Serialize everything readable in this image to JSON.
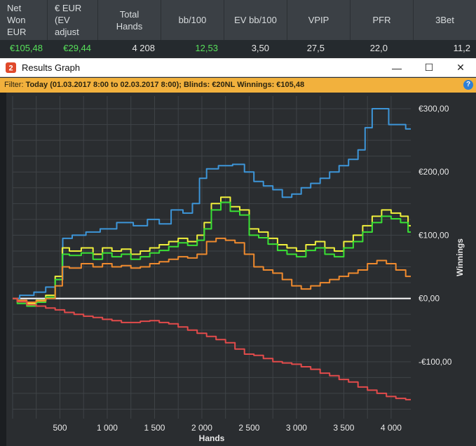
{
  "stats_table": {
    "headers": [
      "Net Won EUR",
      "€ EUR (EV adjust",
      "Total Hands",
      "bb/100",
      "EV bb/100",
      "VPIP",
      "PFR",
      "3Bet"
    ],
    "values": [
      "€105,48",
      "€29,44",
      "4 208",
      "12,53",
      "3,50",
      "27,5",
      "22,0",
      "11,2"
    ]
  },
  "window": {
    "title": "Results Graph",
    "minimize_label": "—",
    "maximize_label": "☐",
    "close_label": "✕",
    "filter": {
      "prefix": "Filter:",
      "text": "Today (01.03.2017 8:00 to 02.03.2017 8:00); Blinds: €20NL Winnings: €105,48"
    },
    "help_label": "?"
  },
  "colors": {
    "header_bg": "#3b4045",
    "green_value": "#57e05a",
    "filter_bg": "#f2b13d",
    "series_blue": "#3d95d8",
    "series_yellow": "#f0f03c",
    "series_green": "#39e035",
    "series_orange": "#ef8a2e",
    "series_red": "#e24b4b",
    "zero_line": "#ffffff"
  },
  "chart_data": {
    "type": "line",
    "xlabel": "Hands",
    "ylabel": "Winnings",
    "xlim": [
      0,
      4208
    ],
    "ylim": [
      -190,
      320
    ],
    "x_ticks": [
      500,
      1000,
      1500,
      2000,
      2500,
      3000,
      3500,
      4000
    ],
    "x_tick_labels": [
      "500",
      "1 000",
      "1 500",
      "2 000",
      "2 500",
      "3 000",
      "3 500",
      "4 000"
    ],
    "y_ticks": [
      300,
      200,
      100,
      0,
      -100
    ],
    "y_tick_labels": [
      "€300,00",
      "€200,00",
      "€100,00",
      "€0,00",
      "-€100,00"
    ],
    "grid": true,
    "series": [
      {
        "color": "#3d95d8",
        "x": [
          0,
          150,
          300,
          400,
          500,
          560,
          700,
          850,
          1000,
          1200,
          1350,
          1500,
          1600,
          1750,
          1850,
          1950,
          2000,
          2100,
          2250,
          2400,
          2500,
          2600,
          2700,
          2800,
          2900,
          3000,
          3100,
          3200,
          3300,
          3400,
          3500,
          3600,
          3700,
          3750,
          3850,
          3950,
          4000,
          4100,
          4208
        ],
        "values": [
          0,
          5,
          10,
          18,
          30,
          95,
          100,
          105,
          110,
          120,
          115,
          125,
          118,
          140,
          135,
          150,
          190,
          205,
          210,
          212,
          200,
          185,
          178,
          172,
          160,
          165,
          175,
          182,
          190,
          200,
          210,
          220,
          235,
          270,
          300,
          300,
          275,
          275,
          268
        ]
      },
      {
        "color": "#f0f03c",
        "x": [
          0,
          100,
          200,
          300,
          400,
          500,
          550,
          650,
          800,
          900,
          1000,
          1100,
          1200,
          1300,
          1400,
          1500,
          1600,
          1700,
          1800,
          1900,
          2000,
          2050,
          2150,
          2250,
          2350,
          2450,
          2550,
          2650,
          2750,
          2850,
          2950,
          3050,
          3150,
          3250,
          3350,
          3450,
          3550,
          3650,
          3750,
          3850,
          3950,
          4050,
          4150,
          4208
        ],
        "values": [
          0,
          -5,
          -8,
          -3,
          5,
          35,
          80,
          75,
          80,
          70,
          80,
          75,
          78,
          70,
          75,
          80,
          85,
          90,
          95,
          90,
          100,
          120,
          150,
          160,
          145,
          140,
          110,
          105,
          95,
          85,
          80,
          75,
          85,
          90,
          80,
          75,
          90,
          100,
          115,
          130,
          140,
          135,
          130,
          115
        ]
      },
      {
        "color": "#39e035",
        "x": [
          0,
          100,
          200,
          300,
          400,
          500,
          550,
          650,
          800,
          900,
          1000,
          1100,
          1200,
          1300,
          1400,
          1500,
          1600,
          1700,
          1800,
          1900,
          2000,
          2050,
          2150,
          2250,
          2350,
          2450,
          2550,
          2650,
          2750,
          2850,
          2950,
          3050,
          3150,
          3250,
          3350,
          3450,
          3550,
          3650,
          3750,
          3850,
          3950,
          4050,
          4150,
          4208
        ],
        "values": [
          0,
          -8,
          -12,
          -6,
          2,
          30,
          70,
          68,
          72,
          62,
          72,
          66,
          70,
          62,
          66,
          72,
          76,
          82,
          88,
          84,
          92,
          110,
          140,
          152,
          138,
          132,
          100,
          96,
          86,
          76,
          70,
          66,
          76,
          80,
          70,
          66,
          80,
          90,
          105,
          120,
          130,
          126,
          120,
          105
        ]
      },
      {
        "color": "#ef8a2e",
        "x": [
          0,
          100,
          200,
          300,
          400,
          500,
          550,
          650,
          800,
          900,
          1000,
          1100,
          1200,
          1300,
          1400,
          1500,
          1600,
          1700,
          1800,
          1900,
          2000,
          2100,
          2200,
          2300,
          2400,
          2500,
          2600,
          2700,
          2800,
          2900,
          3000,
          3100,
          3200,
          3300,
          3400,
          3500,
          3600,
          3700,
          3800,
          3900,
          4000,
          4100,
          4208
        ],
        "values": [
          0,
          -3,
          -6,
          -4,
          0,
          20,
          50,
          48,
          55,
          50,
          55,
          50,
          52,
          48,
          50,
          55,
          58,
          62,
          66,
          64,
          70,
          90,
          95,
          92,
          88,
          70,
          50,
          45,
          40,
          30,
          20,
          15,
          20,
          25,
          30,
          35,
          40,
          45,
          55,
          60,
          55,
          45,
          35
        ]
      },
      {
        "color": "#e24b4b",
        "x": [
          0,
          100,
          200,
          300,
          400,
          500,
          600,
          700,
          800,
          900,
          1000,
          1100,
          1200,
          1300,
          1400,
          1500,
          1600,
          1700,
          1800,
          1900,
          2000,
          2100,
          2200,
          2300,
          2400,
          2500,
          2600,
          2700,
          2800,
          2900,
          3000,
          3100,
          3200,
          3300,
          3400,
          3500,
          3600,
          3700,
          3800,
          3900,
          4000,
          4100,
          4208
        ],
        "values": [
          0,
          -5,
          -10,
          -12,
          -15,
          -18,
          -22,
          -25,
          -28,
          -30,
          -33,
          -35,
          -38,
          -38,
          -36,
          -35,
          -38,
          -40,
          -45,
          -50,
          -55,
          -60,
          -65,
          -70,
          -80,
          -88,
          -90,
          -95,
          -100,
          -102,
          -104,
          -108,
          -112,
          -118,
          -122,
          -128,
          -132,
          -140,
          -145,
          -150,
          -155,
          -158,
          -160
        ]
      }
    ]
  }
}
